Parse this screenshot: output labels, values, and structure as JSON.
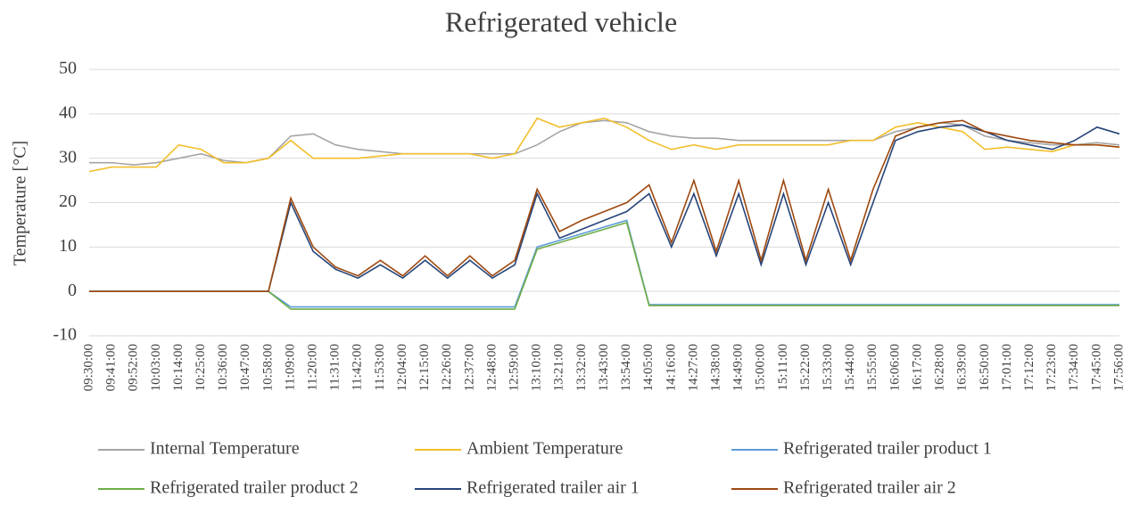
{
  "chart_data": {
    "type": "line",
    "title": "Refrigerated vehicle",
    "y_label": "Temperature [°C]",
    "categories": [
      "09:30:00",
      "09:41:00",
      "09:52:00",
      "10:03:00",
      "10:14:00",
      "10:25:00",
      "10:36:00",
      "10:47:00",
      "10:58:00",
      "11:09:00",
      "11:20:00",
      "11:31:00",
      "11:42:00",
      "11:53:00",
      "12:04:00",
      "12:15:00",
      "12:26:00",
      "12:37:00",
      "12:48:00",
      "12:59:00",
      "13:10:00",
      "13:21:00",
      "13:32:00",
      "13:43:00",
      "13:54:00",
      "14:05:00",
      "14:16:00",
      "14:27:00",
      "14:38:00",
      "14:49:00",
      "15:00:00",
      "15:11:00",
      "15:22:00",
      "15:33:00",
      "15:44:00",
      "15:55:00",
      "16:06:00",
      "16:17:00",
      "16:28:00",
      "16:39:00",
      "16:50:00",
      "17:01:00",
      "17:12:00",
      "17:23:00",
      "17:34:00",
      "17:45:00",
      "17:56:00"
    ],
    "series": [
      {
        "name": "Internal Temperature",
        "color": "#a5a5a5",
        "values": [
          29,
          29,
          28.5,
          29,
          30,
          31,
          29.5,
          29,
          30,
          35,
          35.5,
          33,
          32,
          31.5,
          31,
          31,
          31,
          31,
          31,
          31,
          33,
          36,
          38,
          38.5,
          38,
          36,
          35,
          34.5,
          34.5,
          34,
          34,
          34,
          34,
          34,
          34,
          34,
          36,
          37,
          38,
          37.5,
          35,
          34,
          33.5,
          33,
          33,
          33.5,
          33
        ]
      },
      {
        "name": "Ambient Temperature",
        "color": "#f2be2a",
        "values": [
          27,
          28,
          28,
          28,
          33,
          32,
          29,
          29,
          30,
          34,
          30,
          30,
          30,
          30.5,
          31,
          31,
          31,
          31,
          30,
          31,
          39,
          37,
          38,
          39,
          37,
          34,
          32,
          33,
          32,
          33,
          33,
          33,
          33,
          33,
          34,
          34,
          37,
          38,
          37,
          36,
          32,
          32.5,
          32,
          31.5,
          33,
          33,
          32.5
        ]
      },
      {
        "name": "Refrigerated trailer product 1",
        "color": "#5b9bd5",
        "values": [
          0,
          0,
          0,
          0,
          0,
          0,
          0,
          0,
          0,
          -3.5,
          -3.5,
          -3.5,
          -3.5,
          -3.5,
          -3.5,
          -3.5,
          -3.5,
          -3.5,
          -3.5,
          -3.5,
          10,
          11.5,
          13,
          14.5,
          16,
          -3,
          -3,
          -3,
          -3,
          -3,
          -3,
          -3,
          -3,
          -3,
          -3,
          -3,
          -3,
          -3,
          -3,
          -3,
          -3,
          -3,
          -3,
          -3,
          -3,
          -3,
          -3
        ]
      },
      {
        "name": "Refrigerated trailer product 2",
        "color": "#70ad47",
        "values": [
          0,
          0,
          0,
          0,
          0,
          0,
          0,
          0,
          0,
          -4,
          -4,
          -4,
          -4,
          -4,
          -4,
          -4,
          -4,
          -4,
          -4,
          -4,
          9.5,
          11,
          12.5,
          14,
          15.5,
          -3.2,
          -3.2,
          -3.2,
          -3.2,
          -3.2,
          -3.2,
          -3.2,
          -3.2,
          -3.2,
          -3.2,
          -3.2,
          -3.2,
          -3.2,
          -3.2,
          -3.2,
          -3.2,
          -3.2,
          -3.2,
          -3.2,
          -3.2,
          -3.2,
          -3.2
        ]
      },
      {
        "name": "Refrigerated trailer air 1",
        "color": "#264478",
        "values": [
          0,
          0,
          0,
          0,
          0,
          0,
          0,
          0,
          0,
          20,
          9,
          5,
          3,
          6,
          3,
          7,
          3,
          7,
          3,
          6,
          22,
          12,
          14,
          16,
          18,
          22,
          10,
          22,
          8,
          22,
          6,
          22,
          6,
          20,
          6,
          20,
          34,
          36,
          37,
          37.5,
          36,
          34,
          33,
          32,
          34,
          37,
          35.5
        ]
      },
      {
        "name": "Refrigerated trailer air 2",
        "color": "#9e480e",
        "values": [
          0,
          0,
          0,
          0,
          0,
          0,
          0,
          0,
          0,
          21,
          10,
          5.5,
          3.5,
          7,
          3.5,
          8,
          3.5,
          8,
          3.5,
          7,
          23,
          13.5,
          16,
          18,
          20,
          24,
          11,
          25,
          9,
          25,
          7,
          25,
          7,
          23,
          7,
          23,
          35,
          37,
          38,
          38.5,
          36,
          35,
          34,
          33.5,
          33,
          33,
          32.5
        ]
      }
    ],
    "ylim": [
      -10,
      50
    ],
    "yticks": [
      -10,
      0,
      10,
      20,
      30,
      40,
      50
    ],
    "grid": true,
    "legend": "bottom"
  }
}
